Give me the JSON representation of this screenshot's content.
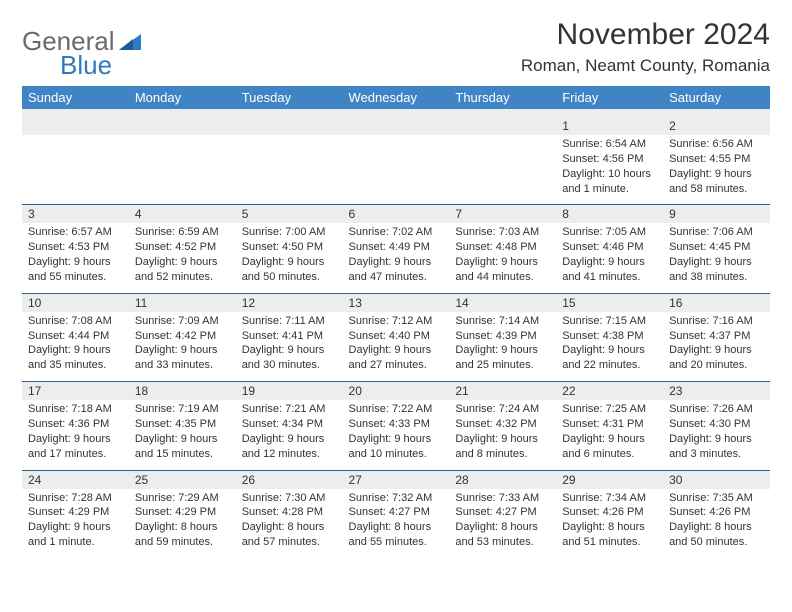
{
  "logo": {
    "general": "General",
    "blue": "Blue"
  },
  "title": {
    "month": "November 2024",
    "location": "Roman, Neamt County, Romania"
  },
  "colors": {
    "header_bg": "#3f85c6",
    "header_text": "#ffffff",
    "daynum_bg": "#eceded",
    "cell_border": "#2f5f8f",
    "logo_blue": "#2f7ac0",
    "logo_gray": "#6a6a6a",
    "text": "#333333"
  },
  "weekdays": [
    "Sunday",
    "Monday",
    "Tuesday",
    "Wednesday",
    "Thursday",
    "Friday",
    "Saturday"
  ],
  "weeks": [
    [
      {
        "day": "",
        "lines": [
          "",
          "",
          "",
          ""
        ]
      },
      {
        "day": "",
        "lines": [
          "",
          "",
          "",
          ""
        ]
      },
      {
        "day": "",
        "lines": [
          "",
          "",
          "",
          ""
        ]
      },
      {
        "day": "",
        "lines": [
          "",
          "",
          "",
          ""
        ]
      },
      {
        "day": "",
        "lines": [
          "",
          "",
          "",
          ""
        ]
      },
      {
        "day": "1",
        "lines": [
          "Sunrise: 6:54 AM",
          "Sunset: 4:56 PM",
          "Daylight: 10 hours",
          "and 1 minute."
        ]
      },
      {
        "day": "2",
        "lines": [
          "Sunrise: 6:56 AM",
          "Sunset: 4:55 PM",
          "Daylight: 9 hours",
          "and 58 minutes."
        ]
      }
    ],
    [
      {
        "day": "3",
        "lines": [
          "Sunrise: 6:57 AM",
          "Sunset: 4:53 PM",
          "Daylight: 9 hours",
          "and 55 minutes."
        ]
      },
      {
        "day": "4",
        "lines": [
          "Sunrise: 6:59 AM",
          "Sunset: 4:52 PM",
          "Daylight: 9 hours",
          "and 52 minutes."
        ]
      },
      {
        "day": "5",
        "lines": [
          "Sunrise: 7:00 AM",
          "Sunset: 4:50 PM",
          "Daylight: 9 hours",
          "and 50 minutes."
        ]
      },
      {
        "day": "6",
        "lines": [
          "Sunrise: 7:02 AM",
          "Sunset: 4:49 PM",
          "Daylight: 9 hours",
          "and 47 minutes."
        ]
      },
      {
        "day": "7",
        "lines": [
          "Sunrise: 7:03 AM",
          "Sunset: 4:48 PM",
          "Daylight: 9 hours",
          "and 44 minutes."
        ]
      },
      {
        "day": "8",
        "lines": [
          "Sunrise: 7:05 AM",
          "Sunset: 4:46 PM",
          "Daylight: 9 hours",
          "and 41 minutes."
        ]
      },
      {
        "day": "9",
        "lines": [
          "Sunrise: 7:06 AM",
          "Sunset: 4:45 PM",
          "Daylight: 9 hours",
          "and 38 minutes."
        ]
      }
    ],
    [
      {
        "day": "10",
        "lines": [
          "Sunrise: 7:08 AM",
          "Sunset: 4:44 PM",
          "Daylight: 9 hours",
          "and 35 minutes."
        ]
      },
      {
        "day": "11",
        "lines": [
          "Sunrise: 7:09 AM",
          "Sunset: 4:42 PM",
          "Daylight: 9 hours",
          "and 33 minutes."
        ]
      },
      {
        "day": "12",
        "lines": [
          "Sunrise: 7:11 AM",
          "Sunset: 4:41 PM",
          "Daylight: 9 hours",
          "and 30 minutes."
        ]
      },
      {
        "day": "13",
        "lines": [
          "Sunrise: 7:12 AM",
          "Sunset: 4:40 PM",
          "Daylight: 9 hours",
          "and 27 minutes."
        ]
      },
      {
        "day": "14",
        "lines": [
          "Sunrise: 7:14 AM",
          "Sunset: 4:39 PM",
          "Daylight: 9 hours",
          "and 25 minutes."
        ]
      },
      {
        "day": "15",
        "lines": [
          "Sunrise: 7:15 AM",
          "Sunset: 4:38 PM",
          "Daylight: 9 hours",
          "and 22 minutes."
        ]
      },
      {
        "day": "16",
        "lines": [
          "Sunrise: 7:16 AM",
          "Sunset: 4:37 PM",
          "Daylight: 9 hours",
          "and 20 minutes."
        ]
      }
    ],
    [
      {
        "day": "17",
        "lines": [
          "Sunrise: 7:18 AM",
          "Sunset: 4:36 PM",
          "Daylight: 9 hours",
          "and 17 minutes."
        ]
      },
      {
        "day": "18",
        "lines": [
          "Sunrise: 7:19 AM",
          "Sunset: 4:35 PM",
          "Daylight: 9 hours",
          "and 15 minutes."
        ]
      },
      {
        "day": "19",
        "lines": [
          "Sunrise: 7:21 AM",
          "Sunset: 4:34 PM",
          "Daylight: 9 hours",
          "and 12 minutes."
        ]
      },
      {
        "day": "20",
        "lines": [
          "Sunrise: 7:22 AM",
          "Sunset: 4:33 PM",
          "Daylight: 9 hours",
          "and 10 minutes."
        ]
      },
      {
        "day": "21",
        "lines": [
          "Sunrise: 7:24 AM",
          "Sunset: 4:32 PM",
          "Daylight: 9 hours",
          "and 8 minutes."
        ]
      },
      {
        "day": "22",
        "lines": [
          "Sunrise: 7:25 AM",
          "Sunset: 4:31 PM",
          "Daylight: 9 hours",
          "and 6 minutes."
        ]
      },
      {
        "day": "23",
        "lines": [
          "Sunrise: 7:26 AM",
          "Sunset: 4:30 PM",
          "Daylight: 9 hours",
          "and 3 minutes."
        ]
      }
    ],
    [
      {
        "day": "24",
        "lines": [
          "Sunrise: 7:28 AM",
          "Sunset: 4:29 PM",
          "Daylight: 9 hours",
          "and 1 minute."
        ]
      },
      {
        "day": "25",
        "lines": [
          "Sunrise: 7:29 AM",
          "Sunset: 4:29 PM",
          "Daylight: 8 hours",
          "and 59 minutes."
        ]
      },
      {
        "day": "26",
        "lines": [
          "Sunrise: 7:30 AM",
          "Sunset: 4:28 PM",
          "Daylight: 8 hours",
          "and 57 minutes."
        ]
      },
      {
        "day": "27",
        "lines": [
          "Sunrise: 7:32 AM",
          "Sunset: 4:27 PM",
          "Daylight: 8 hours",
          "and 55 minutes."
        ]
      },
      {
        "day": "28",
        "lines": [
          "Sunrise: 7:33 AM",
          "Sunset: 4:27 PM",
          "Daylight: 8 hours",
          "and 53 minutes."
        ]
      },
      {
        "day": "29",
        "lines": [
          "Sunrise: 7:34 AM",
          "Sunset: 4:26 PM",
          "Daylight: 8 hours",
          "and 51 minutes."
        ]
      },
      {
        "day": "30",
        "lines": [
          "Sunrise: 7:35 AM",
          "Sunset: 4:26 PM",
          "Daylight: 8 hours",
          "and 50 minutes."
        ]
      }
    ]
  ]
}
